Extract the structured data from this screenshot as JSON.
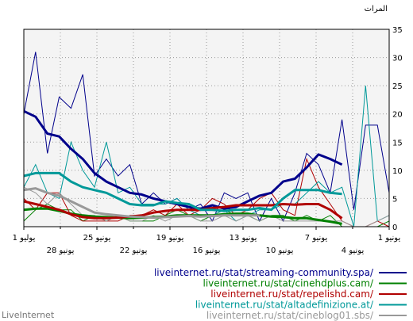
{
  "footer_brand": "LiveInternet",
  "chart_data": {
    "type": "line",
    "ylabel": "المرات",
    "ylim": [
      0,
      35
    ],
    "yticks": [
      0,
      5,
      10,
      15,
      20,
      25,
      30,
      35
    ],
    "grid": true,
    "x_axis_direction": "right-to-left",
    "x_start_label": "1 يوليو",
    "x_end_label": "1 يونيو",
    "x_tick_labels_upper": [
      "1 يوليو",
      "25 يونيو",
      "19 يونيو",
      "13 يونيو",
      "7 يونيو",
      "1 يونيو"
    ],
    "x_tick_labels_lower": [
      "28 يونيو",
      "22 يونيو",
      "16 يونيو",
      "10 يونيو",
      "4 يونيو"
    ],
    "legend_position": "bottom-right",
    "series": [
      {
        "name": "liveinternet.ru/stat/streaming-community.spa/",
        "color": "#00008b",
        "raw": [
          20,
          31,
          13,
          23,
          21,
          27,
          9,
          12,
          9,
          11,
          4,
          6,
          4,
          5,
          3,
          4,
          1,
          6,
          5,
          6,
          1,
          5,
          1,
          6,
          13,
          11,
          6,
          19,
          3,
          18,
          18,
          6
        ],
        "smoothed": [
          20.5,
          19.5,
          16.5,
          16,
          13.8,
          12,
          9.5,
          8,
          7,
          6,
          5.7,
          5,
          4.5,
          4,
          3.5,
          3.2,
          3.8,
          3.2,
          3.5,
          4.5,
          5.5,
          6,
          8,
          8.5,
          10.5,
          12.8,
          12,
          11
        ]
      },
      {
        "name": "liveinternet.ru/stat/cinehdplus.cam/",
        "color": "#008000",
        "raw": [
          1,
          3,
          4,
          3,
          3,
          1,
          2,
          1,
          2,
          1,
          1,
          1,
          2,
          3,
          2,
          1,
          2,
          3,
          2,
          2,
          1,
          2,
          2,
          1,
          2,
          1,
          2,
          0,
          0,
          0,
          0,
          1
        ],
        "smoothed": [
          3,
          3.2,
          3.2,
          2.8,
          2.3,
          2,
          1.8,
          1.7,
          1.6,
          1.5,
          1.6,
          1.7,
          1.8,
          2,
          2,
          2,
          2,
          2.2,
          2.3,
          2.3,
          2,
          1.8,
          1.7,
          1.5,
          1.5,
          1.2,
          0.9,
          0.5
        ]
      },
      {
        "name": "liveinternet.ru/stat/repelishd.cam/",
        "color": "#b00000",
        "raw": [
          5,
          3,
          6,
          6,
          2,
          1,
          1,
          1,
          1,
          2,
          2,
          3,
          2,
          4,
          2,
          3,
          5,
          4,
          2,
          3,
          5,
          6,
          3,
          2,
          12,
          7,
          4,
          1,
          0,
          0,
          1,
          0
        ],
        "smoothed": [
          4.5,
          4,
          3.5,
          3,
          2.2,
          1.7,
          1.5,
          1.5,
          1.6,
          1.8,
          2,
          2.5,
          2.8,
          3,
          3,
          3,
          3.3,
          3.5,
          3.8,
          3.8,
          3.8,
          3.8,
          4,
          3.9,
          4,
          4,
          3,
          1.5
        ]
      },
      {
        "name": "liveinternet.ru/stat/altadefinizione.at/",
        "color": "#009999",
        "raw": [
          7,
          11,
          6,
          5,
          15,
          10,
          7,
          15,
          6,
          7,
          4,
          4,
          4,
          5,
          3,
          2,
          2,
          3,
          1,
          2,
          3,
          3,
          4,
          4,
          6,
          8,
          6,
          7,
          0,
          25,
          1,
          2
        ],
        "smoothed": [
          9,
          9.5,
          9.5,
          9.5,
          8,
          7,
          6.5,
          6,
          5,
          4,
          3.8,
          3.8,
          4.5,
          4.2,
          4,
          3,
          3,
          2.8,
          3,
          3,
          3.3,
          3,
          5,
          6.5,
          6.5,
          6.5,
          6,
          5.8
        ]
      },
      {
        "name": "liveinternet.ru/stat/cineblog01.sbs/",
        "color": "#999999",
        "raw": [
          7,
          6,
          4,
          6,
          4,
          2,
          2,
          1,
          2,
          1,
          1,
          2,
          1,
          2,
          2,
          1,
          1,
          2,
          1,
          2,
          1,
          2,
          1,
          1,
          1,
          1,
          1,
          1,
          0,
          0,
          1,
          2
        ],
        "smoothed": [
          6.5,
          6.8,
          6,
          5.5,
          4.5,
          3.5,
          2.5,
          2.2,
          2,
          1.8,
          1.7,
          1.6,
          1.7,
          1.8,
          1.9,
          1.8,
          1.9,
          2,
          2,
          2,
          2
        ]
      }
    ]
  }
}
